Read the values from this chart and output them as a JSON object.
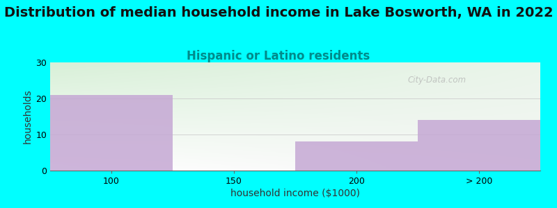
{
  "title": "Distribution of median household income in Lake Bosworth, WA in 2022",
  "subtitle": "Hispanic or Latino residents",
  "xlabel": "household income ($1000)",
  "ylabel": "households",
  "background_color": "#00FFFF",
  "bar_color": "#C5A8D4",
  "categories": [
    "100",
    "150",
    "200",
    "> 200"
  ],
  "values": [
    21,
    0,
    8,
    14
  ],
  "ylim": [
    0,
    30
  ],
  "yticks": [
    0,
    10,
    20,
    30
  ],
  "title_fontsize": 14,
  "subtitle_fontsize": 12,
  "subtitle_color": "#008B8B",
  "xlabel_fontsize": 10,
  "ylabel_fontsize": 10,
  "watermark": "City-Data.com",
  "grad_color_topleft": "#d8f0d8",
  "grad_color_right": "#f5f5f5"
}
